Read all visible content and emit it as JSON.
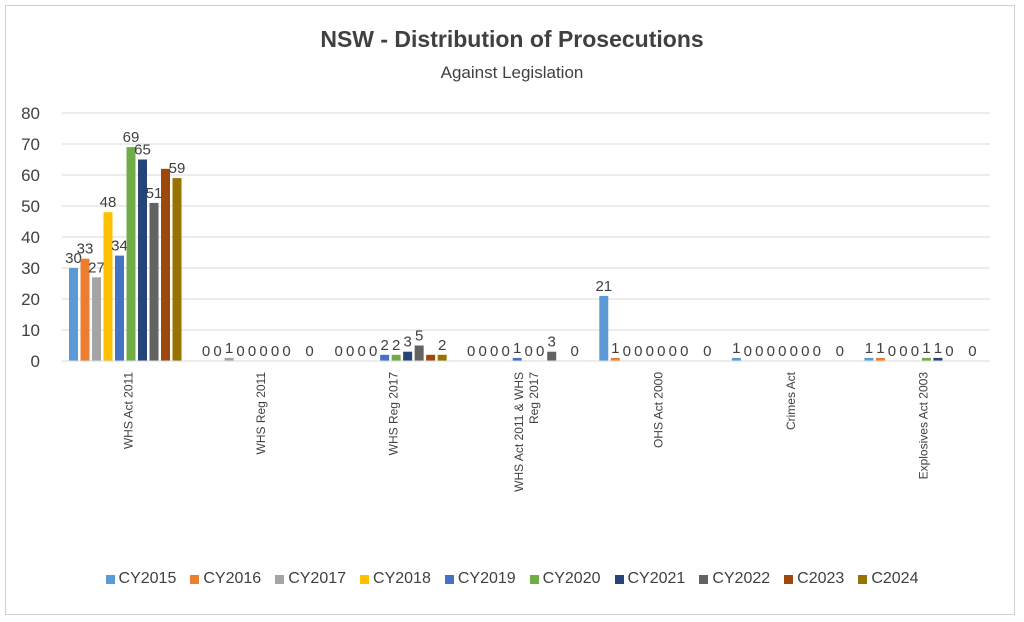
{
  "chart_data": {
    "type": "bar",
    "title": "NSW - Distribution of Prosecutions",
    "subtitle": "Against Legislation",
    "xlabel": "",
    "ylabel": "",
    "ylim": [
      0,
      80
    ],
    "yticks": [
      0,
      10,
      20,
      30,
      40,
      50,
      60,
      70,
      80
    ],
    "grid": true,
    "legend_position": "bottom",
    "categories": [
      "WHS Act 2011",
      "WHS Reg 2011",
      "WHS Reg 2017",
      "WHS Act 2011 & WHS Reg 2017",
      "OHS Act 2000",
      "Crimes Act",
      "Explosives Act 2003"
    ],
    "data_labels_hidden_series": [
      "C2023"
    ],
    "series": [
      {
        "name": "CY2015",
        "color": "#5b9bd5",
        "values": [
          30,
          0,
          0,
          0,
          21,
          1,
          1
        ]
      },
      {
        "name": "CY2016",
        "color": "#ed7d31",
        "values": [
          33,
          0,
          0,
          0,
          1,
          0,
          1
        ]
      },
      {
        "name": "CY2017",
        "color": "#a5a5a5",
        "values": [
          27,
          1,
          0,
          0,
          0,
          0,
          0
        ]
      },
      {
        "name": "CY2018",
        "color": "#ffc000",
        "values": [
          48,
          0,
          0,
          0,
          0,
          0,
          0
        ]
      },
      {
        "name": "CY2019",
        "color": "#4472c4",
        "values": [
          34,
          0,
          2,
          1,
          0,
          0,
          0
        ]
      },
      {
        "name": "CY2020",
        "color": "#70ad47",
        "values": [
          69,
          0,
          2,
          0,
          0,
          0,
          1
        ]
      },
      {
        "name": "CY2021",
        "color": "#264478",
        "values": [
          65,
          0,
          3,
          0,
          0,
          0,
          1
        ]
      },
      {
        "name": "CY2022",
        "color": "#636363",
        "values": [
          51,
          0,
          5,
          3,
          0,
          0,
          0
        ]
      },
      {
        "name": "C2023",
        "color": "#9e480e",
        "values": [
          62,
          0,
          2,
          0,
          0,
          0,
          0
        ]
      },
      {
        "name": "C2024",
        "color": "#997300",
        "values": [
          59,
          0,
          2,
          0,
          0,
          0,
          0
        ]
      }
    ]
  }
}
